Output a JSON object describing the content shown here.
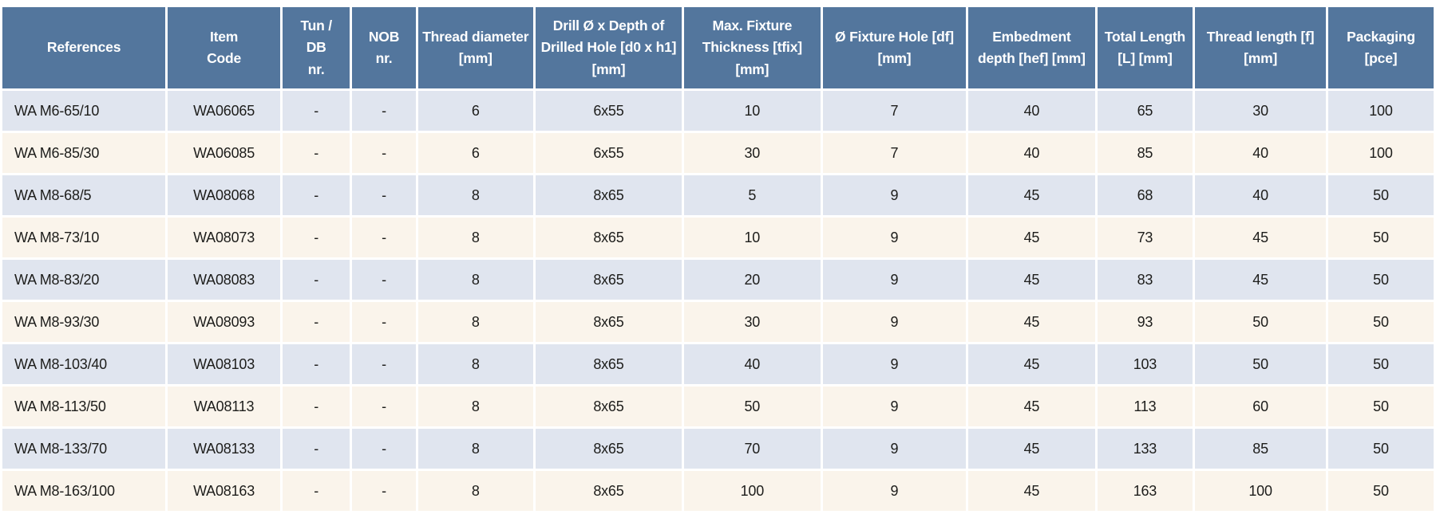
{
  "table": {
    "columns": [
      "References",
      "Item\nCode",
      "Tun /\nDB\nnr.",
      "NOB\nnr.",
      "Thread diameter [mm]",
      "Drill Ø x Depth of Drilled Hole [d0 x h1] [mm]",
      "Max. Fixture Thickness [tfix] [mm]",
      "Ø Fixture Hole [df] [mm]",
      "Embedment depth [hef] [mm]",
      "Total Length [L] [mm]",
      "Thread length [f] [mm]",
      "Packaging [pce]"
    ],
    "rows": [
      [
        "WA M6-65/10",
        "WA06065",
        "-",
        "-",
        "6",
        "6x55",
        "10",
        "7",
        "40",
        "65",
        "30",
        "100"
      ],
      [
        "WA M6-85/30",
        "WA06085",
        "-",
        "-",
        "6",
        "6x55",
        "30",
        "7",
        "40",
        "85",
        "40",
        "100"
      ],
      [
        "WA M8-68/5",
        "WA08068",
        "-",
        "-",
        "8",
        "8x65",
        "5",
        "9",
        "45",
        "68",
        "40",
        "50"
      ],
      [
        "WA M8-73/10",
        "WA08073",
        "-",
        "-",
        "8",
        "8x65",
        "10",
        "9",
        "45",
        "73",
        "45",
        "50"
      ],
      [
        "WA M8-83/20",
        "WA08083",
        "-",
        "-",
        "8",
        "8x65",
        "20",
        "9",
        "45",
        "83",
        "45",
        "50"
      ],
      [
        "WA M8-93/30",
        "WA08093",
        "-",
        "-",
        "8",
        "8x65",
        "30",
        "9",
        "45",
        "93",
        "50",
        "50"
      ],
      [
        "WA M8-103/40",
        "WA08103",
        "-",
        "-",
        "8",
        "8x65",
        "40",
        "9",
        "45",
        "103",
        "50",
        "50"
      ],
      [
        "WA M8-113/50",
        "WA08113",
        "-",
        "-",
        "8",
        "8x65",
        "50",
        "9",
        "45",
        "113",
        "60",
        "50"
      ],
      [
        "WA M8-133/70",
        "WA08133",
        "-",
        "-",
        "8",
        "8x65",
        "70",
        "9",
        "45",
        "133",
        "85",
        "50"
      ],
      [
        "WA M8-163/100",
        "WA08163",
        "-",
        "-",
        "8",
        "8x65",
        "100",
        "9",
        "45",
        "163",
        "100",
        "50"
      ]
    ]
  },
  "colors": {
    "header_bg": "#53769D",
    "header_text": "#FFFFFF",
    "row_blue_bg": "#E0E5EF",
    "row_cream_bg": "#FAF4EB",
    "cell_text": "#1D1D1B",
    "gap": "#FFFFFF"
  }
}
